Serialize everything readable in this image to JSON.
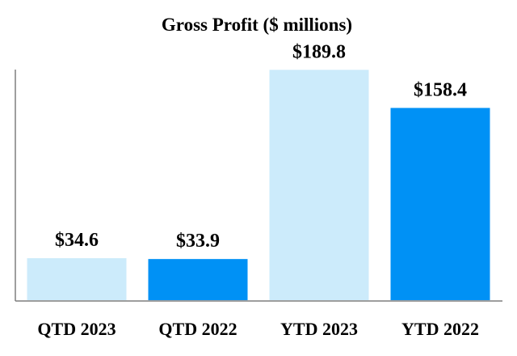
{
  "chart_data": {
    "type": "bar",
    "title": "Gross Profit ($ millions)",
    "xlabel": "",
    "ylabel": "",
    "categories": [
      "QTD 2023",
      "QTD 2022",
      "YTD 2023",
      "YTD 2022"
    ],
    "values": [
      34.6,
      33.9,
      189.8,
      158.4
    ],
    "value_labels": [
      "$34.6",
      "$33.9",
      "$189.8",
      "$158.4"
    ],
    "bar_colors": [
      "#CCEBFB",
      "#0091F5",
      "#CCEBFB",
      "#0091F5"
    ],
    "axis_color": "#7F7F7F",
    "ylim": [
      0,
      200
    ],
    "grid": false,
    "legend": "none"
  }
}
